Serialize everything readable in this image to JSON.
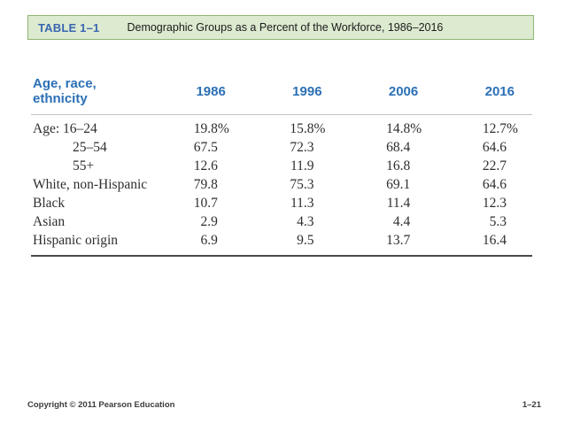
{
  "header": {
    "label": "TABLE 1–1",
    "title": "Demographic Groups as a Percent of the Workforce, 1986–2016"
  },
  "table": {
    "columns": [
      "Age, race, ethnicity",
      "1986",
      "1996",
      "2006",
      "2016"
    ],
    "rows": [
      {
        "label": "Age: 16–24",
        "values": [
          "19.8",
          "15.8",
          "14.8",
          "12.7"
        ],
        "suffix": "%"
      },
      {
        "label": "25–54",
        "values": [
          "67.5",
          "72.3",
          "68.4",
          "64.6"
        ],
        "suffix": ""
      },
      {
        "label": "55+",
        "values": [
          "12.6",
          "11.9",
          "16.8",
          "22.7"
        ],
        "suffix": ""
      },
      {
        "label": "White, non-Hispanic",
        "values": [
          "79.8",
          "75.3",
          "69.1",
          "64.6"
        ],
        "suffix": ""
      },
      {
        "label": "Black",
        "values": [
          "10.7",
          "11.3",
          "11.4",
          "12.3"
        ],
        "suffix": ""
      },
      {
        "label": "Asian",
        "values": [
          "2.9",
          "4.3",
          "4.4",
          "5.3"
        ],
        "suffix": ""
      },
      {
        "label": "Hispanic origin",
        "values": [
          "6.9",
          "9.5",
          "13.7",
          "16.4"
        ],
        "suffix": ""
      }
    ]
  },
  "footer": {
    "copyright": "Copyright © 2011 Pearson Education",
    "page": "1–21"
  },
  "colors": {
    "header_bg": "#dcead0",
    "header_border": "#8fb573",
    "label_blue": "#3a66b0",
    "accent_blue": "#2b70b6",
    "rule_light": "#bfc7cd",
    "rule_dark": "#4a4a4a"
  }
}
